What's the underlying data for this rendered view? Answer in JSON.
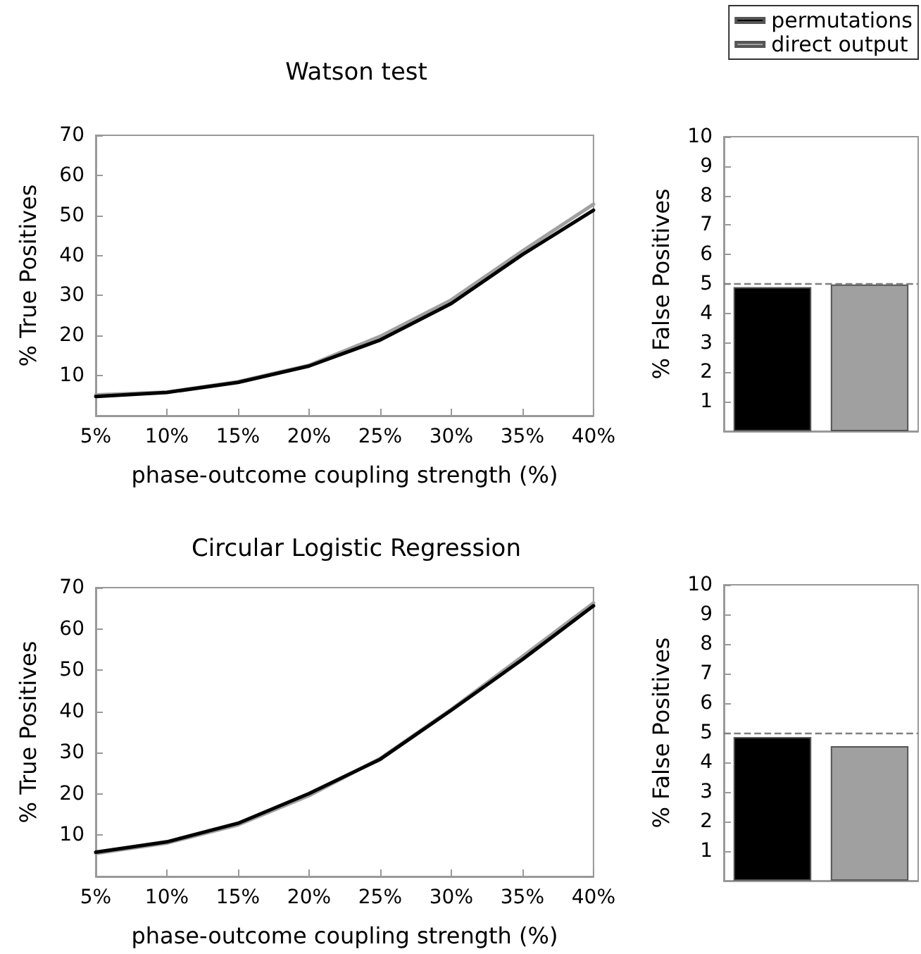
{
  "chart_data": [
    {
      "type": "line",
      "title": "Watson test",
      "xlabel": "phase-outcome coupling strength (%)",
      "ylabel": "% True Positives",
      "categories": [
        "5%",
        "10%",
        "15%",
        "20%",
        "25%",
        "30%",
        "35%",
        "40%"
      ],
      "ylim": [
        0,
        70
      ],
      "yticks": [
        10,
        20,
        30,
        40,
        50,
        60,
        70
      ],
      "grid": false,
      "legend": false,
      "marker": "none",
      "line_style": "solid",
      "series": [
        {
          "color": "#a0a0a0",
          "values": [
            5.2,
            5.9,
            8.5,
            12.6,
            19.8,
            28.9,
            41.1,
            52.8
          ]
        },
        {
          "color": "#000000",
          "values": [
            4.8,
            5.8,
            8.3,
            12.4,
            18.9,
            28,
            40.2,
            51.3
          ]
        }
      ]
    },
    {
      "type": "bar",
      "ylabel": "% False Positives",
      "categories": [
        null,
        null
      ],
      "ylim": [
        0,
        10
      ],
      "yticks": [
        1,
        2,
        3,
        4,
        5,
        6,
        7,
        8,
        9,
        10
      ],
      "tick_labels": "y",
      "grid": false,
      "legend": "top right",
      "series": [
        {
          "name": "permutations",
          "color": "#000000",
          "values": [
            4.89,
            null
          ]
        },
        {
          "name": "direct output",
          "color": "#a0a0a0",
          "values": [
            null,
            4.98
          ]
        }
      ],
      "ref_lines": [
        {
          "axis": "y",
          "value": 5,
          "color": "#808080",
          "line_style": "dashed"
        }
      ]
    },
    {
      "type": "line",
      "title": "Circular Logistic Regression",
      "xlabel": "phase-outcome coupling strength (%)",
      "ylabel": "% True Positives",
      "categories": [
        "5%",
        "10%",
        "15%",
        "20%",
        "25%",
        "30%",
        "35%",
        "40%"
      ],
      "ylim": [
        0,
        70
      ],
      "yticks": [
        10,
        20,
        30,
        40,
        50,
        60,
        70
      ],
      "grid": false,
      "legend": false,
      "marker": "none",
      "line_style": "solid",
      "series": [
        {
          "color": "#a0a0a0",
          "values": [
            5.6,
            8.1,
            12.5,
            19.6,
            28.6,
            40.5,
            53.3,
            66.3
          ]
        },
        {
          "color": "#000000",
          "values": [
            5.9,
            8.4,
            12.9,
            20.1,
            28.4,
            40.3,
            52.6,
            65.6
          ]
        }
      ]
    },
    {
      "type": "bar",
      "ylabel": "% False Positives",
      "categories": [
        null,
        null
      ],
      "ylim": [
        0,
        10
      ],
      "yticks": [
        1,
        2,
        3,
        4,
        5,
        6,
        7,
        8,
        9,
        10
      ],
      "tick_labels": "y",
      "grid": false,
      "legend": false,
      "series": [
        {
          "color": "#000000",
          "values": [
            4.86,
            null
          ]
        },
        {
          "color": "#a0a0a0",
          "values": [
            null,
            4.55
          ]
        }
      ],
      "ref_lines": [
        {
          "axis": "y",
          "value": 5,
          "color": "#808080",
          "line_style": "dashed"
        }
      ]
    }
  ]
}
